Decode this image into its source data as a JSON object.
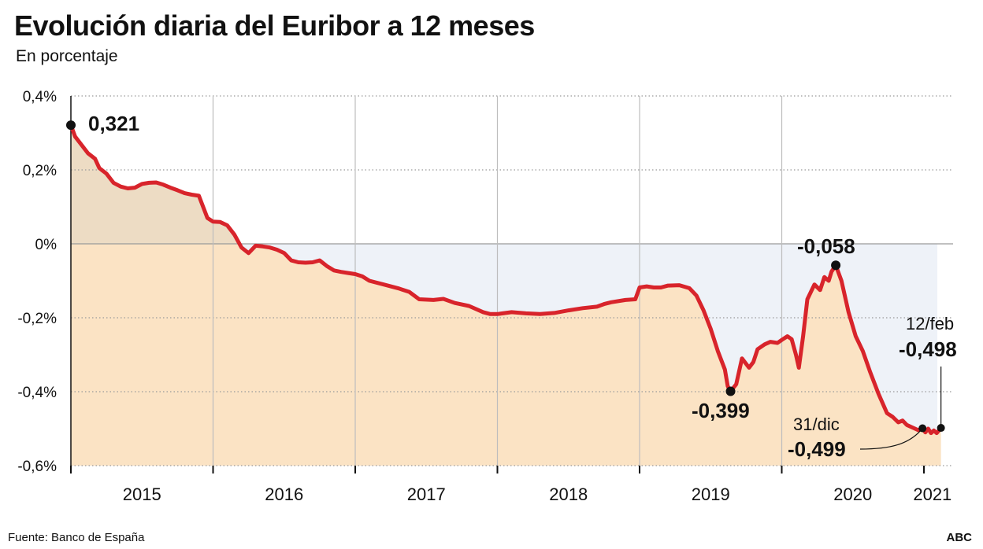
{
  "header": {
    "title": "Evolución diaria del Euribor a 12 meses",
    "subtitle": "En porcentaje"
  },
  "footer": {
    "source": "Fuente: Banco de España",
    "brand": "ABC"
  },
  "colors": {
    "line": "#d8242b",
    "area_positive": "#eddcc4",
    "area_negative": "#fbe3c4",
    "gap_fill": "#eef2f8",
    "grid_vertical": "#bdbdbd",
    "grid_horizontal": "#9a9a9a",
    "marker": "#111111"
  },
  "chart_data": {
    "type": "line",
    "title": "Evolución diaria del Euribor a 12 meses",
    "subtitle": "En porcentaje",
    "xlabel": "",
    "ylabel": "",
    "xlim": [
      2014.9,
      2021.1
    ],
    "ylim": [
      -0.6,
      0.4
    ],
    "yticks": [
      0.4,
      0.2,
      0,
      -0.2,
      -0.4,
      -0.6
    ],
    "ytick_labels": [
      "0,4%",
      "0,2%",
      "0%",
      "-0,2%",
      "-0,4%",
      "-0,6%"
    ],
    "year_boundaries": [
      2015,
      2016,
      2017,
      2018,
      2019,
      2020,
      2021
    ],
    "xtick_labels": [
      {
        "label": "2015",
        "x": 2015.5
      },
      {
        "label": "2016",
        "x": 2016.5
      },
      {
        "label": "2017",
        "x": 2017.5
      },
      {
        "label": "2018",
        "x": 2018.5
      },
      {
        "label": "2019",
        "x": 2019.5
      },
      {
        "label": "2020",
        "x": 2020.5
      },
      {
        "label": "2021",
        "x": 2021.06
      }
    ],
    "grid": "on",
    "series": [
      {
        "name": "Euribor 12 meses",
        "points": [
          [
            2015.0,
            0.321
          ],
          [
            2015.03,
            0.29
          ],
          [
            2015.08,
            0.265
          ],
          [
            2015.12,
            0.245
          ],
          [
            2015.17,
            0.23
          ],
          [
            2015.2,
            0.205
          ],
          [
            2015.25,
            0.19
          ],
          [
            2015.3,
            0.165
          ],
          [
            2015.35,
            0.155
          ],
          [
            2015.4,
            0.15
          ],
          [
            2015.45,
            0.152
          ],
          [
            2015.5,
            0.162
          ],
          [
            2015.55,
            0.165
          ],
          [
            2015.6,
            0.166
          ],
          [
            2015.65,
            0.16
          ],
          [
            2015.7,
            0.152
          ],
          [
            2015.75,
            0.145
          ],
          [
            2015.8,
            0.137
          ],
          [
            2015.85,
            0.133
          ],
          [
            2015.9,
            0.13
          ],
          [
            2015.93,
            0.1
          ],
          [
            2015.96,
            0.07
          ],
          [
            2016.0,
            0.06
          ],
          [
            2016.05,
            0.059
          ],
          [
            2016.1,
            0.05
          ],
          [
            2016.15,
            0.025
          ],
          [
            2016.2,
            -0.01
          ],
          [
            2016.25,
            -0.025
          ],
          [
            2016.3,
            -0.005
          ],
          [
            2016.35,
            -0.007
          ],
          [
            2016.4,
            -0.01
          ],
          [
            2016.45,
            -0.016
          ],
          [
            2016.5,
            -0.025
          ],
          [
            2016.55,
            -0.045
          ],
          [
            2016.6,
            -0.05
          ],
          [
            2016.65,
            -0.051
          ],
          [
            2016.7,
            -0.05
          ],
          [
            2016.75,
            -0.045
          ],
          [
            2016.8,
            -0.06
          ],
          [
            2016.85,
            -0.072
          ],
          [
            2016.9,
            -0.076
          ],
          [
            2016.95,
            -0.079
          ],
          [
            2017.0,
            -0.082
          ],
          [
            2017.05,
            -0.088
          ],
          [
            2017.1,
            -0.1
          ],
          [
            2017.2,
            -0.11
          ],
          [
            2017.3,
            -0.12
          ],
          [
            2017.38,
            -0.13
          ],
          [
            2017.45,
            -0.15
          ],
          [
            2017.55,
            -0.152
          ],
          [
            2017.62,
            -0.149
          ],
          [
            2017.7,
            -0.16
          ],
          [
            2017.8,
            -0.168
          ],
          [
            2017.9,
            -0.185
          ],
          [
            2017.95,
            -0.19
          ],
          [
            2018.0,
            -0.19
          ],
          [
            2018.1,
            -0.185
          ],
          [
            2018.2,
            -0.188
          ],
          [
            2018.3,
            -0.19
          ],
          [
            2018.4,
            -0.187
          ],
          [
            2018.5,
            -0.18
          ],
          [
            2018.6,
            -0.174
          ],
          [
            2018.7,
            -0.17
          ],
          [
            2018.75,
            -0.163
          ],
          [
            2018.8,
            -0.158
          ],
          [
            2018.9,
            -0.152
          ],
          [
            2018.97,
            -0.15
          ],
          [
            2019.0,
            -0.118
          ],
          [
            2019.05,
            -0.115
          ],
          [
            2019.1,
            -0.118
          ],
          [
            2019.15,
            -0.118
          ],
          [
            2019.2,
            -0.113
          ],
          [
            2019.28,
            -0.112
          ],
          [
            2019.35,
            -0.12
          ],
          [
            2019.4,
            -0.14
          ],
          [
            2019.45,
            -0.18
          ],
          [
            2019.5,
            -0.23
          ],
          [
            2019.55,
            -0.29
          ],
          [
            2019.6,
            -0.34
          ],
          [
            2019.62,
            -0.385
          ],
          [
            2019.64,
            -0.399
          ],
          [
            2019.68,
            -0.38
          ],
          [
            2019.72,
            -0.31
          ],
          [
            2019.77,
            -0.335
          ],
          [
            2019.8,
            -0.32
          ],
          [
            2019.83,
            -0.285
          ],
          [
            2019.88,
            -0.272
          ],
          [
            2019.92,
            -0.265
          ],
          [
            2019.97,
            -0.268
          ],
          [
            2020.0,
            -0.26
          ],
          [
            2020.04,
            -0.25
          ],
          [
            2020.07,
            -0.258
          ],
          [
            2020.1,
            -0.3
          ],
          [
            2020.12,
            -0.335
          ],
          [
            2020.15,
            -0.25
          ],
          [
            2020.18,
            -0.15
          ],
          [
            2020.23,
            -0.11
          ],
          [
            2020.27,
            -0.125
          ],
          [
            2020.3,
            -0.09
          ],
          [
            2020.33,
            -0.1
          ],
          [
            2020.35,
            -0.075
          ],
          [
            2020.38,
            -0.058
          ],
          [
            2020.42,
            -0.1
          ],
          [
            2020.47,
            -0.185
          ],
          [
            2020.52,
            -0.25
          ],
          [
            2020.57,
            -0.29
          ],
          [
            2020.62,
            -0.345
          ],
          [
            2020.68,
            -0.405
          ],
          [
            2020.74,
            -0.458
          ],
          [
            2020.78,
            -0.468
          ],
          [
            2020.82,
            -0.483
          ],
          [
            2020.85,
            -0.478
          ],
          [
            2020.88,
            -0.49
          ],
          [
            2020.92,
            -0.497
          ],
          [
            2020.96,
            -0.504
          ],
          [
            2020.99,
            -0.499
          ],
          [
            2021.01,
            -0.51
          ],
          [
            2021.03,
            -0.5
          ],
          [
            2021.05,
            -0.512
          ],
          [
            2021.07,
            -0.505
          ],
          [
            2021.09,
            -0.512
          ],
          [
            2021.12,
            -0.498
          ]
        ]
      }
    ],
    "annotations": [
      {
        "name": "start",
        "x": 2015.0,
        "y": 0.321,
        "date": "",
        "value": "0,321"
      },
      {
        "name": "min-2019",
        "x": 2019.64,
        "y": -0.399,
        "date": "",
        "value": "-0,399"
      },
      {
        "name": "peak-2020",
        "x": 2020.38,
        "y": -0.058,
        "date": "",
        "value": "-0,058"
      },
      {
        "name": "dec-31",
        "x": 2020.99,
        "y": -0.499,
        "date": "31/dic",
        "value": "-0,499"
      },
      {
        "name": "feb-12",
        "x": 2021.12,
        "y": -0.498,
        "date": "12/feb",
        "value": "-0,498"
      }
    ]
  }
}
